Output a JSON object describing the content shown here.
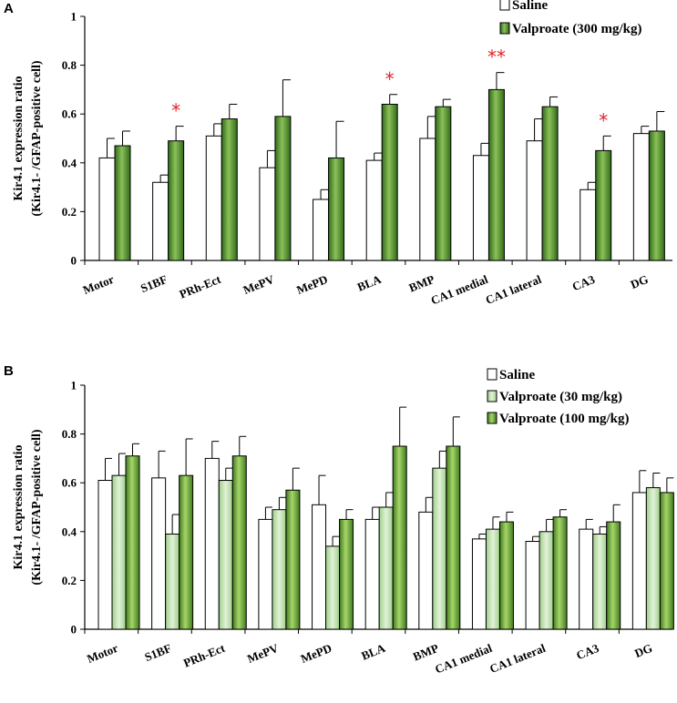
{
  "colors": {
    "saline": "#ffffff",
    "valproate_high": "#4e8a2a",
    "valproate_mid": "#6ea83a",
    "valproate_light": "#b8dca8",
    "significance": "#e8202a"
  },
  "chart_data": [
    {
      "panel": "A",
      "type": "bar",
      "title": "",
      "xlabel": "",
      "ylabel_line1": "Kir4.1 expression ratio",
      "ylabel_line2": "(Kir4.1- /GFAP-positive cell)",
      "ylim": [
        0,
        1
      ],
      "yticks": [
        "0",
        "0.2",
        "0.4",
        "0.6",
        "0.8",
        "1"
      ],
      "categories": [
        "Motor",
        "S1BF",
        "PRh-Ect",
        "MePV",
        "MePD",
        "BLA",
        "BMP",
        "CA1 medial",
        "CA1 lateral",
        "CA3",
        "DG"
      ],
      "legend_position": "top-right",
      "series": [
        {
          "name": "Saline",
          "style": "saline",
          "values": [
            0.42,
            0.32,
            0.51,
            0.38,
            0.25,
            0.41,
            0.5,
            0.43,
            0.49,
            0.29,
            0.52
          ],
          "errors": [
            0.08,
            0.03,
            0.05,
            0.07,
            0.04,
            0.03,
            0.09,
            0.05,
            0.09,
            0.03,
            0.03
          ]
        },
        {
          "name": "Valproate (300 mg/kg)",
          "style": "valproate_high",
          "values": [
            0.47,
            0.49,
            0.58,
            0.59,
            0.42,
            0.64,
            0.63,
            0.7,
            0.63,
            0.45,
            0.53
          ],
          "errors": [
            0.06,
            0.06,
            0.06,
            0.15,
            0.15,
            0.04,
            0.03,
            0.07,
            0.04,
            0.06,
            0.08
          ]
        }
      ],
      "significance": [
        {
          "category": "S1BF",
          "label": "*"
        },
        {
          "category": "BLA",
          "label": "*"
        },
        {
          "category": "CA1 medial",
          "label": "**"
        },
        {
          "category": "CA3",
          "label": "*"
        }
      ]
    },
    {
      "panel": "B",
      "type": "bar",
      "title": "",
      "xlabel": "",
      "ylabel_line1": "Kir4.1 expression ratio",
      "ylabel_line2": "(Kir4.1- /GFAP-positive cell)",
      "ylim": [
        0,
        1
      ],
      "yticks": [
        "0",
        "0.2",
        "0.4",
        "0.6",
        "0.8",
        "1"
      ],
      "categories": [
        "Motor",
        "S1BF",
        "PRh-Ect",
        "MePV",
        "MePD",
        "BLA",
        "BMP",
        "CA1 medial",
        "CA1 lateral",
        "CA3",
        "DG"
      ],
      "legend_position": "top-right",
      "series": [
        {
          "name": "Saline",
          "style": "saline",
          "values": [
            0.61,
            0.62,
            0.7,
            0.45,
            0.51,
            0.45,
            0.48,
            0.37,
            0.36,
            0.41,
            0.56
          ],
          "errors": [
            0.09,
            0.11,
            0.07,
            0.05,
            0.12,
            0.05,
            0.06,
            0.02,
            0.02,
            0.04,
            0.09
          ]
        },
        {
          "name": "Valproate (30 mg/kg)",
          "style": "valproate_light",
          "values": [
            0.63,
            0.39,
            0.61,
            0.49,
            0.34,
            0.5,
            0.66,
            0.41,
            0.4,
            0.39,
            0.58
          ],
          "errors": [
            0.09,
            0.08,
            0.05,
            0.05,
            0.04,
            0.06,
            0.07,
            0.05,
            0.05,
            0.03,
            0.06
          ]
        },
        {
          "name": "Valproate (100 mg/kg)",
          "style": "valproate_mid",
          "values": [
            0.71,
            0.63,
            0.71,
            0.57,
            0.45,
            0.75,
            0.75,
            0.44,
            0.46,
            0.44,
            0.56
          ],
          "errors": [
            0.05,
            0.15,
            0.08,
            0.09,
            0.04,
            0.16,
            0.12,
            0.04,
            0.03,
            0.07,
            0.06
          ]
        }
      ],
      "significance": []
    }
  ]
}
